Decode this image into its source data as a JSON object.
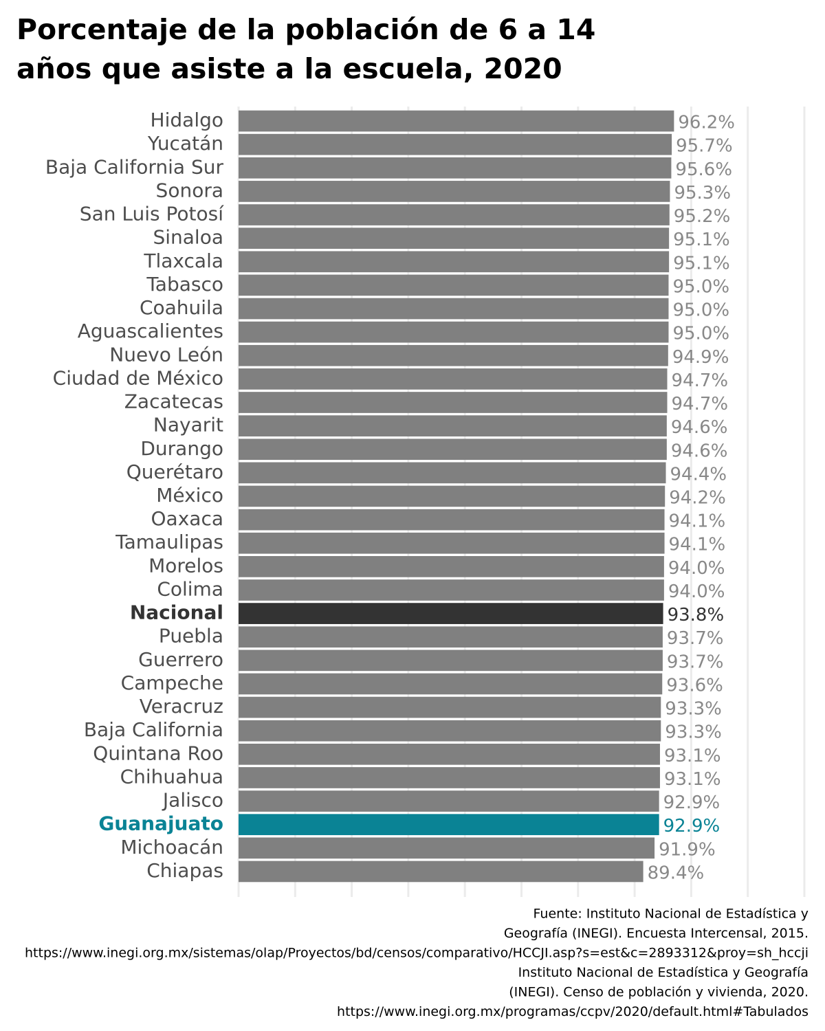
{
  "chart_data": {
    "type": "bar",
    "orientation": "horizontal",
    "title": [
      "Porcentaje de la población de 6 a 14",
      "años que asiste a la escuela, 2020"
    ],
    "categories": [
      "Hidalgo",
      "Yucatán",
      "Baja California Sur",
      "Sonora",
      "San Luis Potosí",
      "Sinaloa",
      "Tlaxcala",
      "Tabasco",
      "Coahuila",
      "Aguascalientes",
      "Nuevo León",
      "Ciudad de México",
      "Zacatecas",
      "Nayarit",
      "Durango",
      "Querétaro",
      "México",
      "Oaxaca",
      "Tamaulipas",
      "Morelos",
      "Colima",
      "Nacional",
      "Puebla",
      "Guerrero",
      "Campeche",
      "Veracruz",
      "Baja California",
      "Quintana Roo",
      "Chihuahua",
      "Jalisco",
      "Guanajuato",
      "Michoacán",
      "Chiapas"
    ],
    "values": [
      96.2,
      95.7,
      95.6,
      95.3,
      95.2,
      95.1,
      95.1,
      95.0,
      95.0,
      95.0,
      94.9,
      94.7,
      94.7,
      94.6,
      94.6,
      94.4,
      94.2,
      94.1,
      94.1,
      94.0,
      94.0,
      93.8,
      93.7,
      93.7,
      93.6,
      93.3,
      93.3,
      93.1,
      93.1,
      92.9,
      92.9,
      91.9,
      89.4
    ],
    "value_labels": [
      "96.2%",
      "95.7%",
      "95.6%",
      "95.3%",
      "95.2%",
      "95.1%",
      "95.1%",
      "95.0%",
      "95.0%",
      "95.0%",
      "94.9%",
      "94.7%",
      "94.7%",
      "94.6%",
      "94.6%",
      "94.4%",
      "94.2%",
      "94.1%",
      "94.1%",
      "94.0%",
      "94.0%",
      "93.8%",
      "93.7%",
      "93.7%",
      "93.6%",
      "93.3%",
      "93.3%",
      "93.1%",
      "93.1%",
      "92.9%",
      "92.9%",
      "91.9%",
      "89.4%"
    ],
    "color": "#808080",
    "colors": [
      "#808080",
      "#808080",
      "#808080",
      "#808080",
      "#808080",
      "#808080",
      "#808080",
      "#808080",
      "#808080",
      "#808080",
      "#808080",
      "#808080",
      "#808080",
      "#808080",
      "#808080",
      "#808080",
      "#808080",
      "#808080",
      "#808080",
      "#808080",
      "#808080",
      "#333333",
      "#808080",
      "#808080",
      "#808080",
      "#808080",
      "#808080",
      "#808080",
      "#808080",
      "#808080",
      "#0a8395",
      "#808080",
      "#808080"
    ],
    "xlim": [
      0,
      125
    ],
    "xticks": [
      0,
      12.5,
      25,
      37.5,
      50,
      62.5,
      75,
      87.5,
      100,
      112.5,
      125
    ],
    "grid": true,
    "caption": [
      "Fuente: Instituto Nacional de Estadística y",
      "Geografía (INEGI). Encuesta Intercensal, 2015.",
      "https://www.inegi.org.mx/sistemas/olap/Proyectos/bd/censos/comparativo/HCCJI.asp?s=est&c=2893312&proy=sh_hccji",
      "Instituto Nacional de Estadística y Geografía",
      "(INEGI). Censo de población y vivienda, 2020.",
      "https://www.inegi.org.mx/programas/ccpv/2020/default.html#Tabulados"
    ]
  }
}
